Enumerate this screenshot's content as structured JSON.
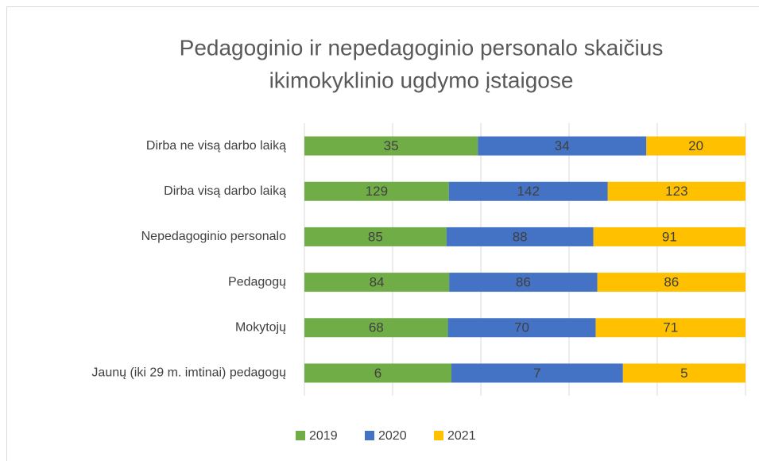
{
  "chart_data": {
    "type": "bar",
    "orientation": "horizontal",
    "stacking": "percent",
    "title": [
      "Pedagoginio ir nepedagoginio personalo skaičius",
      "ikimokyklinio ugdymo įstaigose"
    ],
    "categories": [
      "Dirba ne visą darbo laiką",
      "Dirba visą darbo laiką",
      "Nepedagoginio personalo",
      "Pedagogų",
      "Mokytojų",
      "Jaunų (iki 29 m. imtinai) pedagogų"
    ],
    "series": [
      {
        "name": "2019",
        "color": "#70ad47",
        "values": [
          35,
          129,
          85,
          84,
          68,
          6
        ]
      },
      {
        "name": "2020",
        "color": "#4472c4",
        "values": [
          34,
          142,
          88,
          86,
          70,
          7
        ]
      },
      {
        "name": "2021",
        "color": "#ffc000",
        "values": [
          20,
          123,
          91,
          86,
          71,
          5
        ]
      }
    ],
    "xlim": [
      0,
      100
    ],
    "xticks": [
      0,
      20,
      40,
      60,
      80,
      100
    ],
    "grid": true,
    "legend": "bottom"
  }
}
